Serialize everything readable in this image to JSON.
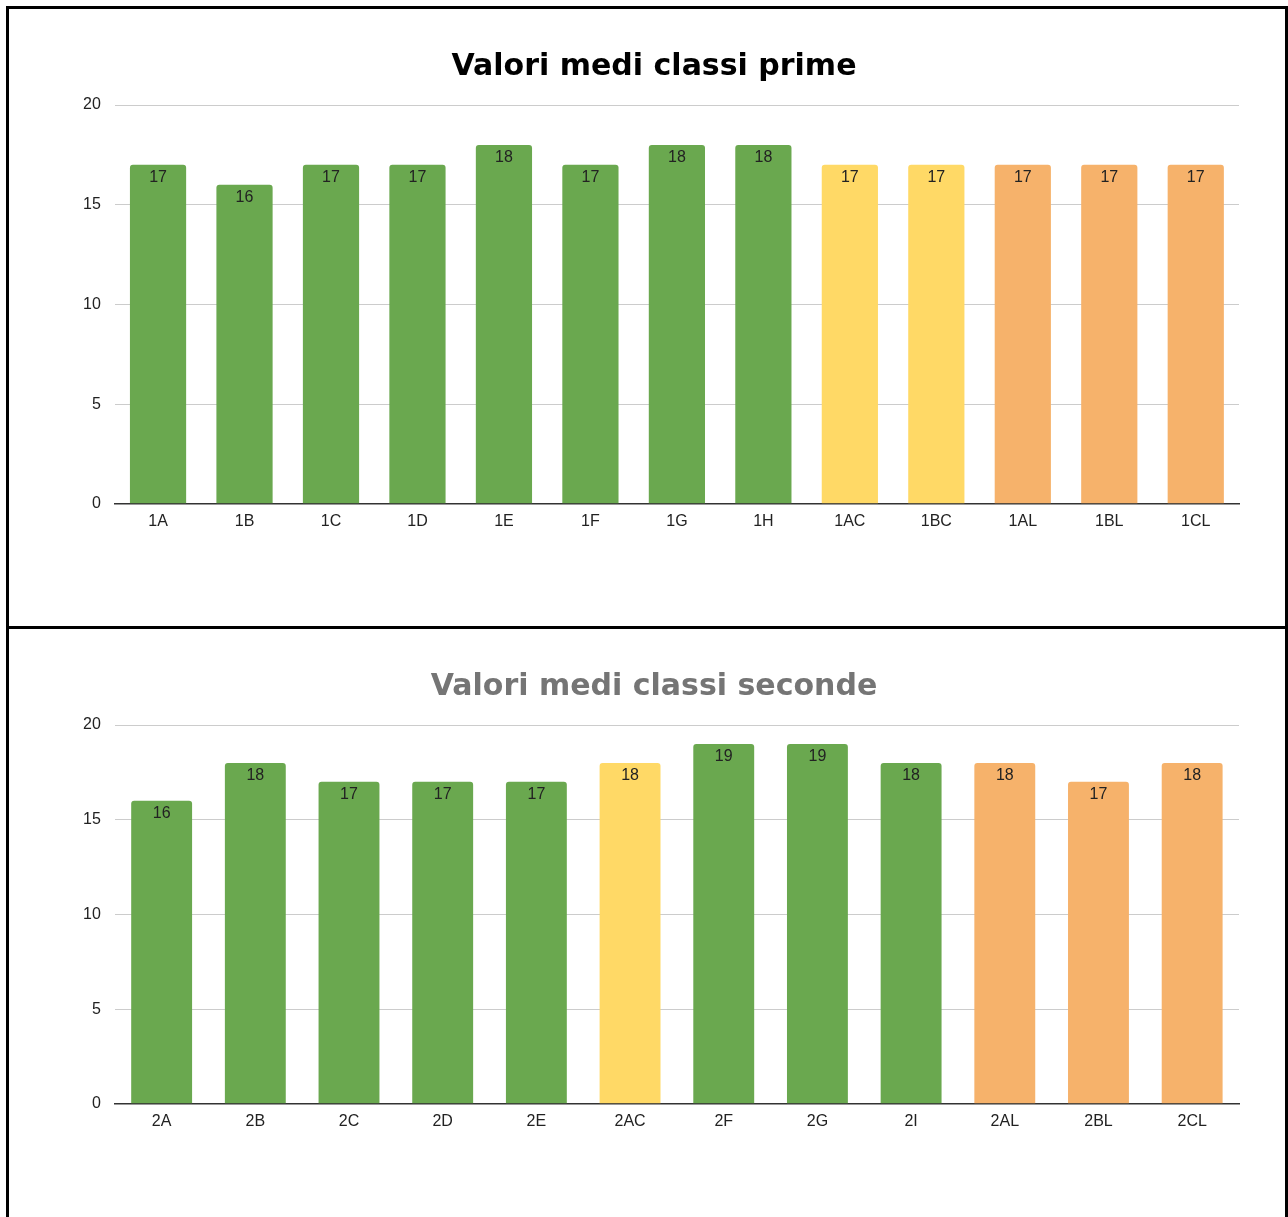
{
  "chart_data": [
    {
      "type": "bar",
      "title": "Valori medi classi prime",
      "categories": [
        "1A",
        "1B",
        "1C",
        "1D",
        "1E",
        "1F",
        "1G",
        "1H",
        "1AC",
        "1BC",
        "1AL",
        "1BL",
        "1CL"
      ],
      "values": [
        17,
        16,
        17,
        17,
        18,
        17,
        18,
        18,
        17,
        17,
        17,
        17,
        17
      ],
      "colors": [
        "#6aa84f",
        "#6aa84f",
        "#6aa84f",
        "#6aa84f",
        "#6aa84f",
        "#6aa84f",
        "#6aa84f",
        "#6aa84f",
        "#ffd966",
        "#ffd966",
        "#f6b26b",
        "#f6b26b",
        "#f6b26b"
      ],
      "ylim": [
        0,
        20
      ],
      "yticks": [
        0,
        5,
        10,
        15,
        20
      ],
      "grid": "y",
      "data_labels": true,
      "legend": false
    },
    {
      "type": "bar",
      "title": "Valori medi classi seconde",
      "categories": [
        "2A",
        "2B",
        "2C",
        "2D",
        "2E",
        "2AC",
        "2F",
        "2G",
        "2I",
        "2AL",
        "2BL",
        "2CL"
      ],
      "values": [
        16,
        18,
        17,
        17,
        17,
        18,
        19,
        19,
        18,
        18,
        17,
        18
      ],
      "colors": [
        "#6aa84f",
        "#6aa84f",
        "#6aa84f",
        "#6aa84f",
        "#6aa84f",
        "#ffd966",
        "#6aa84f",
        "#6aa84f",
        "#6aa84f",
        "#f6b26b",
        "#f6b26b",
        "#f6b26b"
      ],
      "ylim": [
        0,
        20
      ],
      "yticks": [
        0,
        5,
        10,
        15,
        20
      ],
      "grid": "y",
      "data_labels": true,
      "legend": false
    }
  ]
}
